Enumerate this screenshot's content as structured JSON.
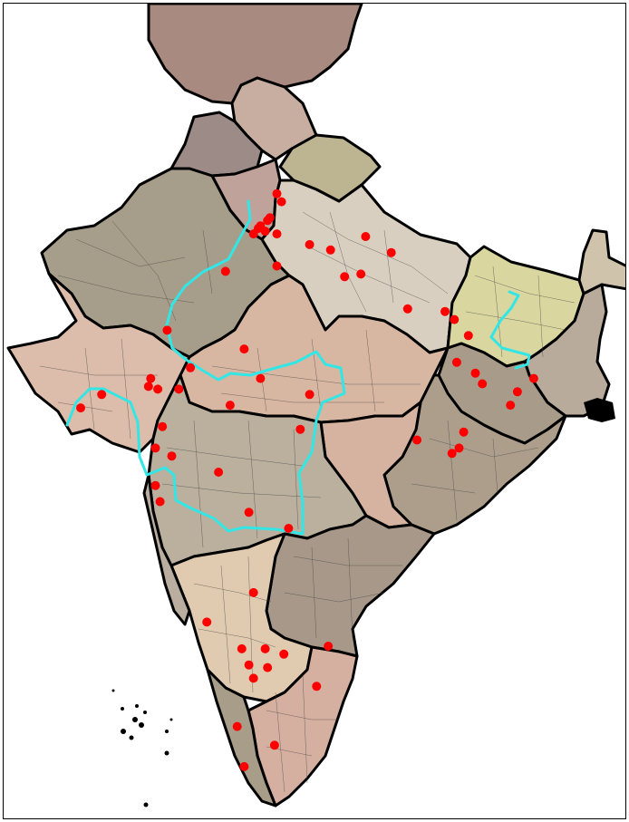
{
  "colors": {
    "marker": "#ff0000",
    "route": "#33e6e6",
    "border": "#000000",
    "district_line": "#444444",
    "background": "#ffffff"
  },
  "regions": [
    {
      "name": "region-north-top",
      "fill": "#a88a80"
    },
    {
      "name": "region-himachal",
      "fill": "#c8aea0"
    },
    {
      "name": "region-punjab",
      "fill": "#9c8b86"
    },
    {
      "name": "region-uttarakhand",
      "fill": "#bdb592"
    },
    {
      "name": "region-haryana",
      "fill": "#bfa39a"
    },
    {
      "name": "region-rajasthan",
      "fill": "#a69d8a"
    },
    {
      "name": "region-uttar-pradesh",
      "fill": "#d9cfc0"
    },
    {
      "name": "region-bihar",
      "fill": "#d9d79f"
    },
    {
      "name": "region-northeast",
      "fill": "#cfc3ac"
    },
    {
      "name": "region-gujarat",
      "fill": "#dcbcaa"
    },
    {
      "name": "region-madhya-pradesh",
      "fill": "#d8b7a2"
    },
    {
      "name": "region-west-bengal",
      "fill": "#b8ab9b"
    },
    {
      "name": "region-jharkhand",
      "fill": "#a89b8a"
    },
    {
      "name": "region-odisha",
      "fill": "#ad9e8c"
    },
    {
      "name": "region-chhattisgarh",
      "fill": "#d6b3a0"
    },
    {
      "name": "region-maharashtra",
      "fill": "#bab09d"
    },
    {
      "name": "region-telangana",
      "fill": "#a79889"
    },
    {
      "name": "region-karnataka",
      "fill": "#e0cbb1"
    },
    {
      "name": "region-goa-konkan",
      "fill": "#b9ae9f"
    },
    {
      "name": "region-tamil-nadu",
      "fill": "#d5b0a0"
    },
    {
      "name": "region-kerala",
      "fill": "#a89d88"
    }
  ],
  "markers": [
    {
      "lon": 77.2,
      "lat": 28.6
    },
    {
      "lon": 77.3,
      "lat": 28.7
    },
    {
      "lon": 77.5,
      "lat": 28.5
    },
    {
      "lon": 77.0,
      "lat": 28.4
    },
    {
      "lon": 77.6,
      "lat": 28.9
    },
    {
      "lon": 78.0,
      "lat": 29.9
    },
    {
      "lon": 78.2,
      "lat": 29.6
    },
    {
      "lon": 77.7,
      "lat": 29.0
    },
    {
      "lon": 78.0,
      "lat": 28.4
    },
    {
      "lon": 78.0,
      "lat": 27.2
    },
    {
      "lon": 79.4,
      "lat": 28.0
    },
    {
      "lon": 80.3,
      "lat": 27.8
    },
    {
      "lon": 81.8,
      "lat": 28.3
    },
    {
      "lon": 82.9,
      "lat": 27.7
    },
    {
      "lon": 80.9,
      "lat": 26.8
    },
    {
      "lon": 81.6,
      "lat": 26.9
    },
    {
      "lon": 83.6,
      "lat": 25.6
    },
    {
      "lon": 75.8,
      "lat": 27.0
    },
    {
      "lon": 73.3,
      "lat": 24.8
    },
    {
      "lon": 74.3,
      "lat": 23.4
    },
    {
      "lon": 76.6,
      "lat": 24.1
    },
    {
      "lon": 72.6,
      "lat": 23.0
    },
    {
      "lon": 72.5,
      "lat": 22.7
    },
    {
      "lon": 72.9,
      "lat": 22.6
    },
    {
      "lon": 70.5,
      "lat": 22.4
    },
    {
      "lon": 69.6,
      "lat": 21.9
    },
    {
      "lon": 73.8,
      "lat": 22.6
    },
    {
      "lon": 76.0,
      "lat": 22.0
    },
    {
      "lon": 77.3,
      "lat": 23.0
    },
    {
      "lon": 79.4,
      "lat": 22.4
    },
    {
      "lon": 73.1,
      "lat": 21.2
    },
    {
      "lon": 72.8,
      "lat": 20.4
    },
    {
      "lon": 73.5,
      "lat": 20.1
    },
    {
      "lon": 72.8,
      "lat": 19.0
    },
    {
      "lon": 73.0,
      "lat": 18.4
    },
    {
      "lon": 75.5,
      "lat": 19.5
    },
    {
      "lon": 76.8,
      "lat": 18.0
    },
    {
      "lon": 79.0,
      "lat": 21.1
    },
    {
      "lon": 78.5,
      "lat": 17.4
    },
    {
      "lon": 77.0,
      "lat": 15.0
    },
    {
      "lon": 75.0,
      "lat": 13.9
    },
    {
      "lon": 76.5,
      "lat": 12.9
    },
    {
      "lon": 76.8,
      "lat": 12.3
    },
    {
      "lon": 77.5,
      "lat": 12.9
    },
    {
      "lon": 77.6,
      "lat": 12.2
    },
    {
      "lon": 78.3,
      "lat": 12.7
    },
    {
      "lon": 77.0,
      "lat": 11.8
    },
    {
      "lon": 80.2,
      "lat": 13.0
    },
    {
      "lon": 79.7,
      "lat": 11.5
    },
    {
      "lon": 76.3,
      "lat": 10.0
    },
    {
      "lon": 77.9,
      "lat": 9.3
    },
    {
      "lon": 76.6,
      "lat": 8.5
    },
    {
      "lon": 85.2,
      "lat": 25.5
    },
    {
      "lon": 85.6,
      "lat": 25.2
    },
    {
      "lon": 86.2,
      "lat": 24.6
    },
    {
      "lon": 85.7,
      "lat": 23.6
    },
    {
      "lon": 86.5,
      "lat": 23.2
    },
    {
      "lon": 86.8,
      "lat": 22.8
    },
    {
      "lon": 88.0,
      "lat": 22.0
    },
    {
      "lon": 88.3,
      "lat": 22.5
    },
    {
      "lon": 89.0,
      "lat": 23.0
    },
    {
      "lon": 85.5,
      "lat": 20.2
    },
    {
      "lon": 85.8,
      "lat": 20.4
    },
    {
      "lon": 84.0,
      "lat": 20.7
    },
    {
      "lon": 86.0,
      "lat": 21.0
    }
  ]
}
